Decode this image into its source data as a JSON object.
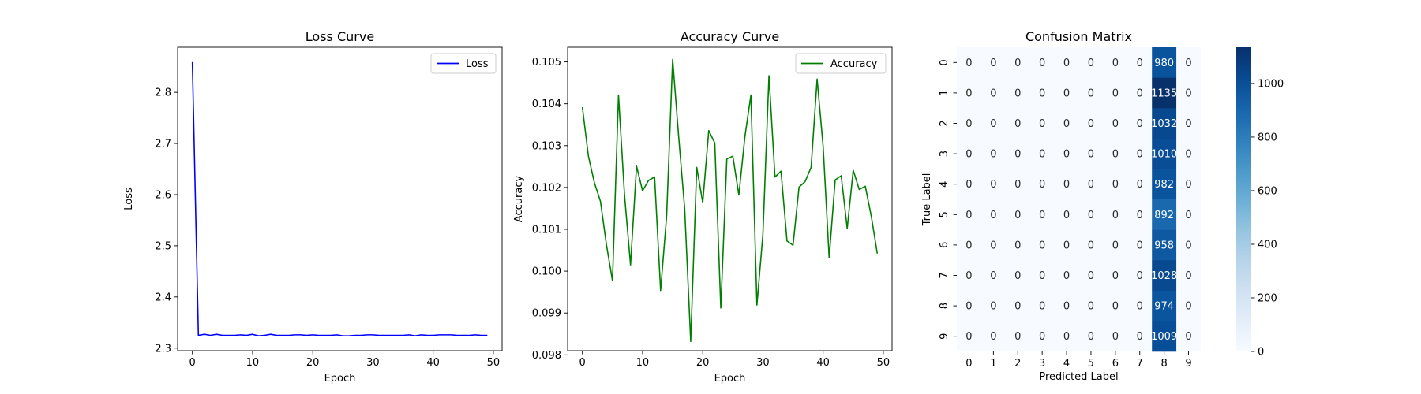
{
  "chart_data": [
    {
      "type": "line",
      "title": "Loss Curve",
      "xlabel": "Epoch",
      "ylabel": "Loss",
      "xlim": [
        -2.45,
        51.45
      ],
      "ylim": [
        2.295,
        2.888
      ],
      "xticks": [
        0,
        10,
        20,
        30,
        40,
        50
      ],
      "yticks": [
        2.3,
        2.4,
        2.5,
        2.6,
        2.7,
        2.8
      ],
      "ytick_labels": [
        "2.3",
        "2.4",
        "2.5",
        "2.6",
        "2.7",
        "2.8"
      ],
      "grid": false,
      "legend": "upper right",
      "series": [
        {
          "name": "Loss",
          "color": "#0000ff",
          "x": [
            0,
            1,
            2,
            3,
            4,
            5,
            6,
            7,
            8,
            9,
            10,
            11,
            12,
            13,
            14,
            15,
            16,
            17,
            18,
            19,
            20,
            21,
            22,
            23,
            24,
            25,
            26,
            27,
            28,
            29,
            30,
            31,
            32,
            33,
            34,
            35,
            36,
            37,
            38,
            39,
            40,
            41,
            42,
            43,
            44,
            45,
            46,
            47,
            48,
            49
          ],
          "values": [
            2.859,
            2.325,
            2.327,
            2.325,
            2.327,
            2.325,
            2.325,
            2.325,
            2.326,
            2.325,
            2.327,
            2.324,
            2.325,
            2.327,
            2.325,
            2.325,
            2.325,
            2.326,
            2.326,
            2.325,
            2.326,
            2.325,
            2.325,
            2.325,
            2.326,
            2.324,
            2.324,
            2.325,
            2.325,
            2.326,
            2.326,
            2.325,
            2.325,
            2.325,
            2.325,
            2.325,
            2.326,
            2.324,
            2.326,
            2.325,
            2.325,
            2.326,
            2.326,
            2.326,
            2.325,
            2.325,
            2.325,
            2.326,
            2.325,
            2.325
          ]
        }
      ]
    },
    {
      "type": "line",
      "title": "Accuracy Curve",
      "xlabel": "Epoch",
      "ylabel": "Accuracy",
      "xlim": [
        -2.45,
        51.45
      ],
      "ylim": [
        0.0981,
        0.10535
      ],
      "xticks": [
        0,
        10,
        20,
        30,
        40,
        50
      ],
      "yticks": [
        0.098,
        0.099,
        0.1,
        0.101,
        0.102,
        0.103,
        0.104,
        0.105
      ],
      "ytick_labels": [
        "0.098",
        "0.099",
        "0.100",
        "0.101",
        "0.102",
        "0.103",
        "0.104",
        "0.105"
      ],
      "grid": false,
      "legend": "upper right",
      "series": [
        {
          "name": "Accuracy",
          "color": "#008000",
          "x": [
            0,
            1,
            2,
            3,
            4,
            5,
            6,
            7,
            8,
            9,
            10,
            11,
            12,
            13,
            14,
            15,
            16,
            17,
            18,
            19,
            20,
            21,
            22,
            23,
            24,
            25,
            26,
            27,
            28,
            29,
            30,
            31,
            32,
            33,
            34,
            35,
            36,
            37,
            38,
            39,
            40,
            41,
            42,
            43,
            44,
            45,
            46,
            47,
            48,
            49
          ],
          "values": [
            0.10392,
            0.10275,
            0.10211,
            0.10167,
            0.10063,
            0.09977,
            0.10421,
            0.10182,
            0.10015,
            0.10251,
            0.10192,
            0.10217,
            0.10225,
            0.09954,
            0.10132,
            0.10506,
            0.10321,
            0.10149,
            0.09832,
            0.10248,
            0.10164,
            0.10336,
            0.10306,
            0.09912,
            0.10268,
            0.10275,
            0.10182,
            0.10321,
            0.10421,
            0.09919,
            0.10089,
            0.10467,
            0.10225,
            0.10239,
            0.10072,
            0.10062,
            0.10201,
            0.10214,
            0.10248,
            0.10459,
            0.10298,
            0.10032,
            0.10218,
            0.10228,
            0.10102,
            0.10241,
            0.10195,
            0.10203,
            0.10131,
            0.10042
          ]
        }
      ]
    },
    {
      "type": "heatmap",
      "title": "Confusion Matrix",
      "xlabel": "Predicted Label",
      "ylabel": "True Label",
      "x_categories": [
        "0",
        "1",
        "2",
        "3",
        "4",
        "5",
        "6",
        "7",
        "8",
        "9"
      ],
      "y_categories": [
        "0",
        "1",
        "2",
        "3",
        "4",
        "5",
        "6",
        "7",
        "8",
        "9"
      ],
      "colormap": "Blues",
      "vmin": 0,
      "vmax": 1135,
      "colorbar_ticks": [
        0,
        200,
        400,
        600,
        800,
        1000
      ],
      "values": [
        [
          0,
          0,
          0,
          0,
          0,
          0,
          0,
          0,
          980,
          0
        ],
        [
          0,
          0,
          0,
          0,
          0,
          0,
          0,
          0,
          1135,
          0
        ],
        [
          0,
          0,
          0,
          0,
          0,
          0,
          0,
          0,
          1032,
          0
        ],
        [
          0,
          0,
          0,
          0,
          0,
          0,
          0,
          0,
          1010,
          0
        ],
        [
          0,
          0,
          0,
          0,
          0,
          0,
          0,
          0,
          982,
          0
        ],
        [
          0,
          0,
          0,
          0,
          0,
          0,
          0,
          0,
          892,
          0
        ],
        [
          0,
          0,
          0,
          0,
          0,
          0,
          0,
          0,
          958,
          0
        ],
        [
          0,
          0,
          0,
          0,
          0,
          0,
          0,
          0,
          1028,
          0
        ],
        [
          0,
          0,
          0,
          0,
          0,
          0,
          0,
          0,
          974,
          0
        ],
        [
          0,
          0,
          0,
          0,
          0,
          0,
          0,
          0,
          1009,
          0
        ]
      ]
    }
  ]
}
